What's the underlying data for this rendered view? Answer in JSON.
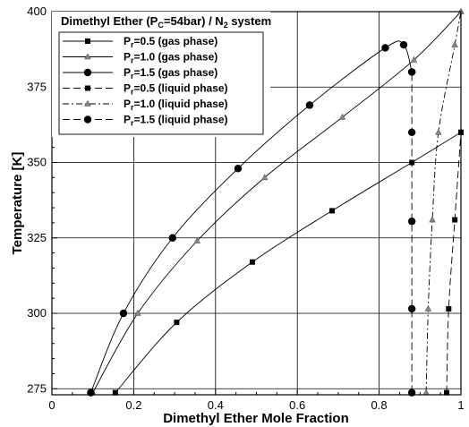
{
  "chart_data": {
    "type": "line",
    "title": "Dimethyl Ether (P_C=54bar) / N_2 system",
    "xlabel": "Dimethyl Ether Mole Fraction",
    "ylabel": "Temperature [K]",
    "xlim": [
      0,
      1
    ],
    "ylim": [
      273,
      400
    ],
    "xticks": [
      0,
      0.2,
      0.4,
      0.6,
      0.8,
      1
    ],
    "xtick_labels": [
      "0",
      "0.2",
      "0.4",
      "0.6",
      "0.8",
      "1"
    ],
    "yticks": [
      275,
      300,
      325,
      350,
      375,
      400
    ],
    "ytick_labels": [
      "275",
      "300",
      "325",
      "350",
      "375",
      "400"
    ],
    "grid": true,
    "legend_position": "top-left",
    "series": [
      {
        "name": "P_r=0.5 (gas phase)",
        "name_base": "P",
        "name_sub": "r",
        "name_rest": "=0.5 (gas phase)",
        "marker": "square",
        "dash": "solid",
        "points": [
          [
            0.155,
            273.7
          ],
          [
            0.305,
            297
          ],
          [
            0.49,
            317
          ],
          [
            0.685,
            334
          ],
          [
            0.88,
            350
          ],
          [
            1.0,
            360
          ]
        ]
      },
      {
        "name": "P_r=1.0 (gas phase)",
        "name_base": "P",
        "name_sub": "r",
        "name_rest": "=1.0 (gas phase)",
        "marker": "triangle",
        "dash": "solid",
        "points": [
          [
            0.1,
            273.7
          ],
          [
            0.21,
            300
          ],
          [
            0.355,
            324
          ],
          [
            0.52,
            345
          ],
          [
            0.71,
            365
          ],
          [
            0.885,
            384
          ],
          [
            1.0,
            400
          ]
        ]
      },
      {
        "name": "P_r=1.5 (gas phase)",
        "name_base": "P",
        "name_sub": "r",
        "name_rest": "=1.5 (gas phase)",
        "marker": "circle",
        "dash": "solid",
        "points": [
          [
            0.095,
            273.7
          ],
          [
            0.175,
            300
          ],
          [
            0.295,
            325
          ],
          [
            0.455,
            348
          ],
          [
            0.63,
            369
          ],
          [
            0.815,
            388
          ],
          [
            0.86,
            389
          ],
          [
            0.88,
            380
          ]
        ]
      },
      {
        "name": "P_r=0.5 (liquid phase)",
        "name_base": "P",
        "name_sub": "r",
        "name_rest": "=0.5 (liquid phase)",
        "marker": "square",
        "dash": "dashed",
        "points": [
          [
            0.965,
            273.7
          ],
          [
            0.97,
            301.5
          ],
          [
            0.985,
            331
          ],
          [
            1.0,
            360
          ]
        ]
      },
      {
        "name": "P_r=1.0 (liquid phase)",
        "name_base": "P",
        "name_sub": "r",
        "name_rest": "=1.0 (liquid phase)",
        "marker": "triangle",
        "dash": "dashed",
        "points": [
          [
            0.915,
            273.7
          ],
          [
            0.92,
            301.5
          ],
          [
            0.93,
            331
          ],
          [
            0.945,
            360
          ],
          [
            0.985,
            389
          ],
          [
            1.0,
            400
          ]
        ]
      },
      {
        "name": "P_r=1.5 (liquid phase)",
        "name_base": "P",
        "name_sub": "r",
        "name_rest": "=1.5 (liquid phase)",
        "marker": "circle",
        "dash": "dashed",
        "points": [
          [
            0.88,
            273.7
          ],
          [
            0.88,
            301.5
          ],
          [
            0.88,
            330.5
          ],
          [
            0.88,
            360
          ],
          [
            0.88,
            380
          ]
        ]
      }
    ]
  },
  "title_parts": {
    "base": "Dimethyl Ether (P",
    "sub1": "C",
    "mid": "=54bar) / N",
    "sub2": "2",
    "rest": " system"
  }
}
